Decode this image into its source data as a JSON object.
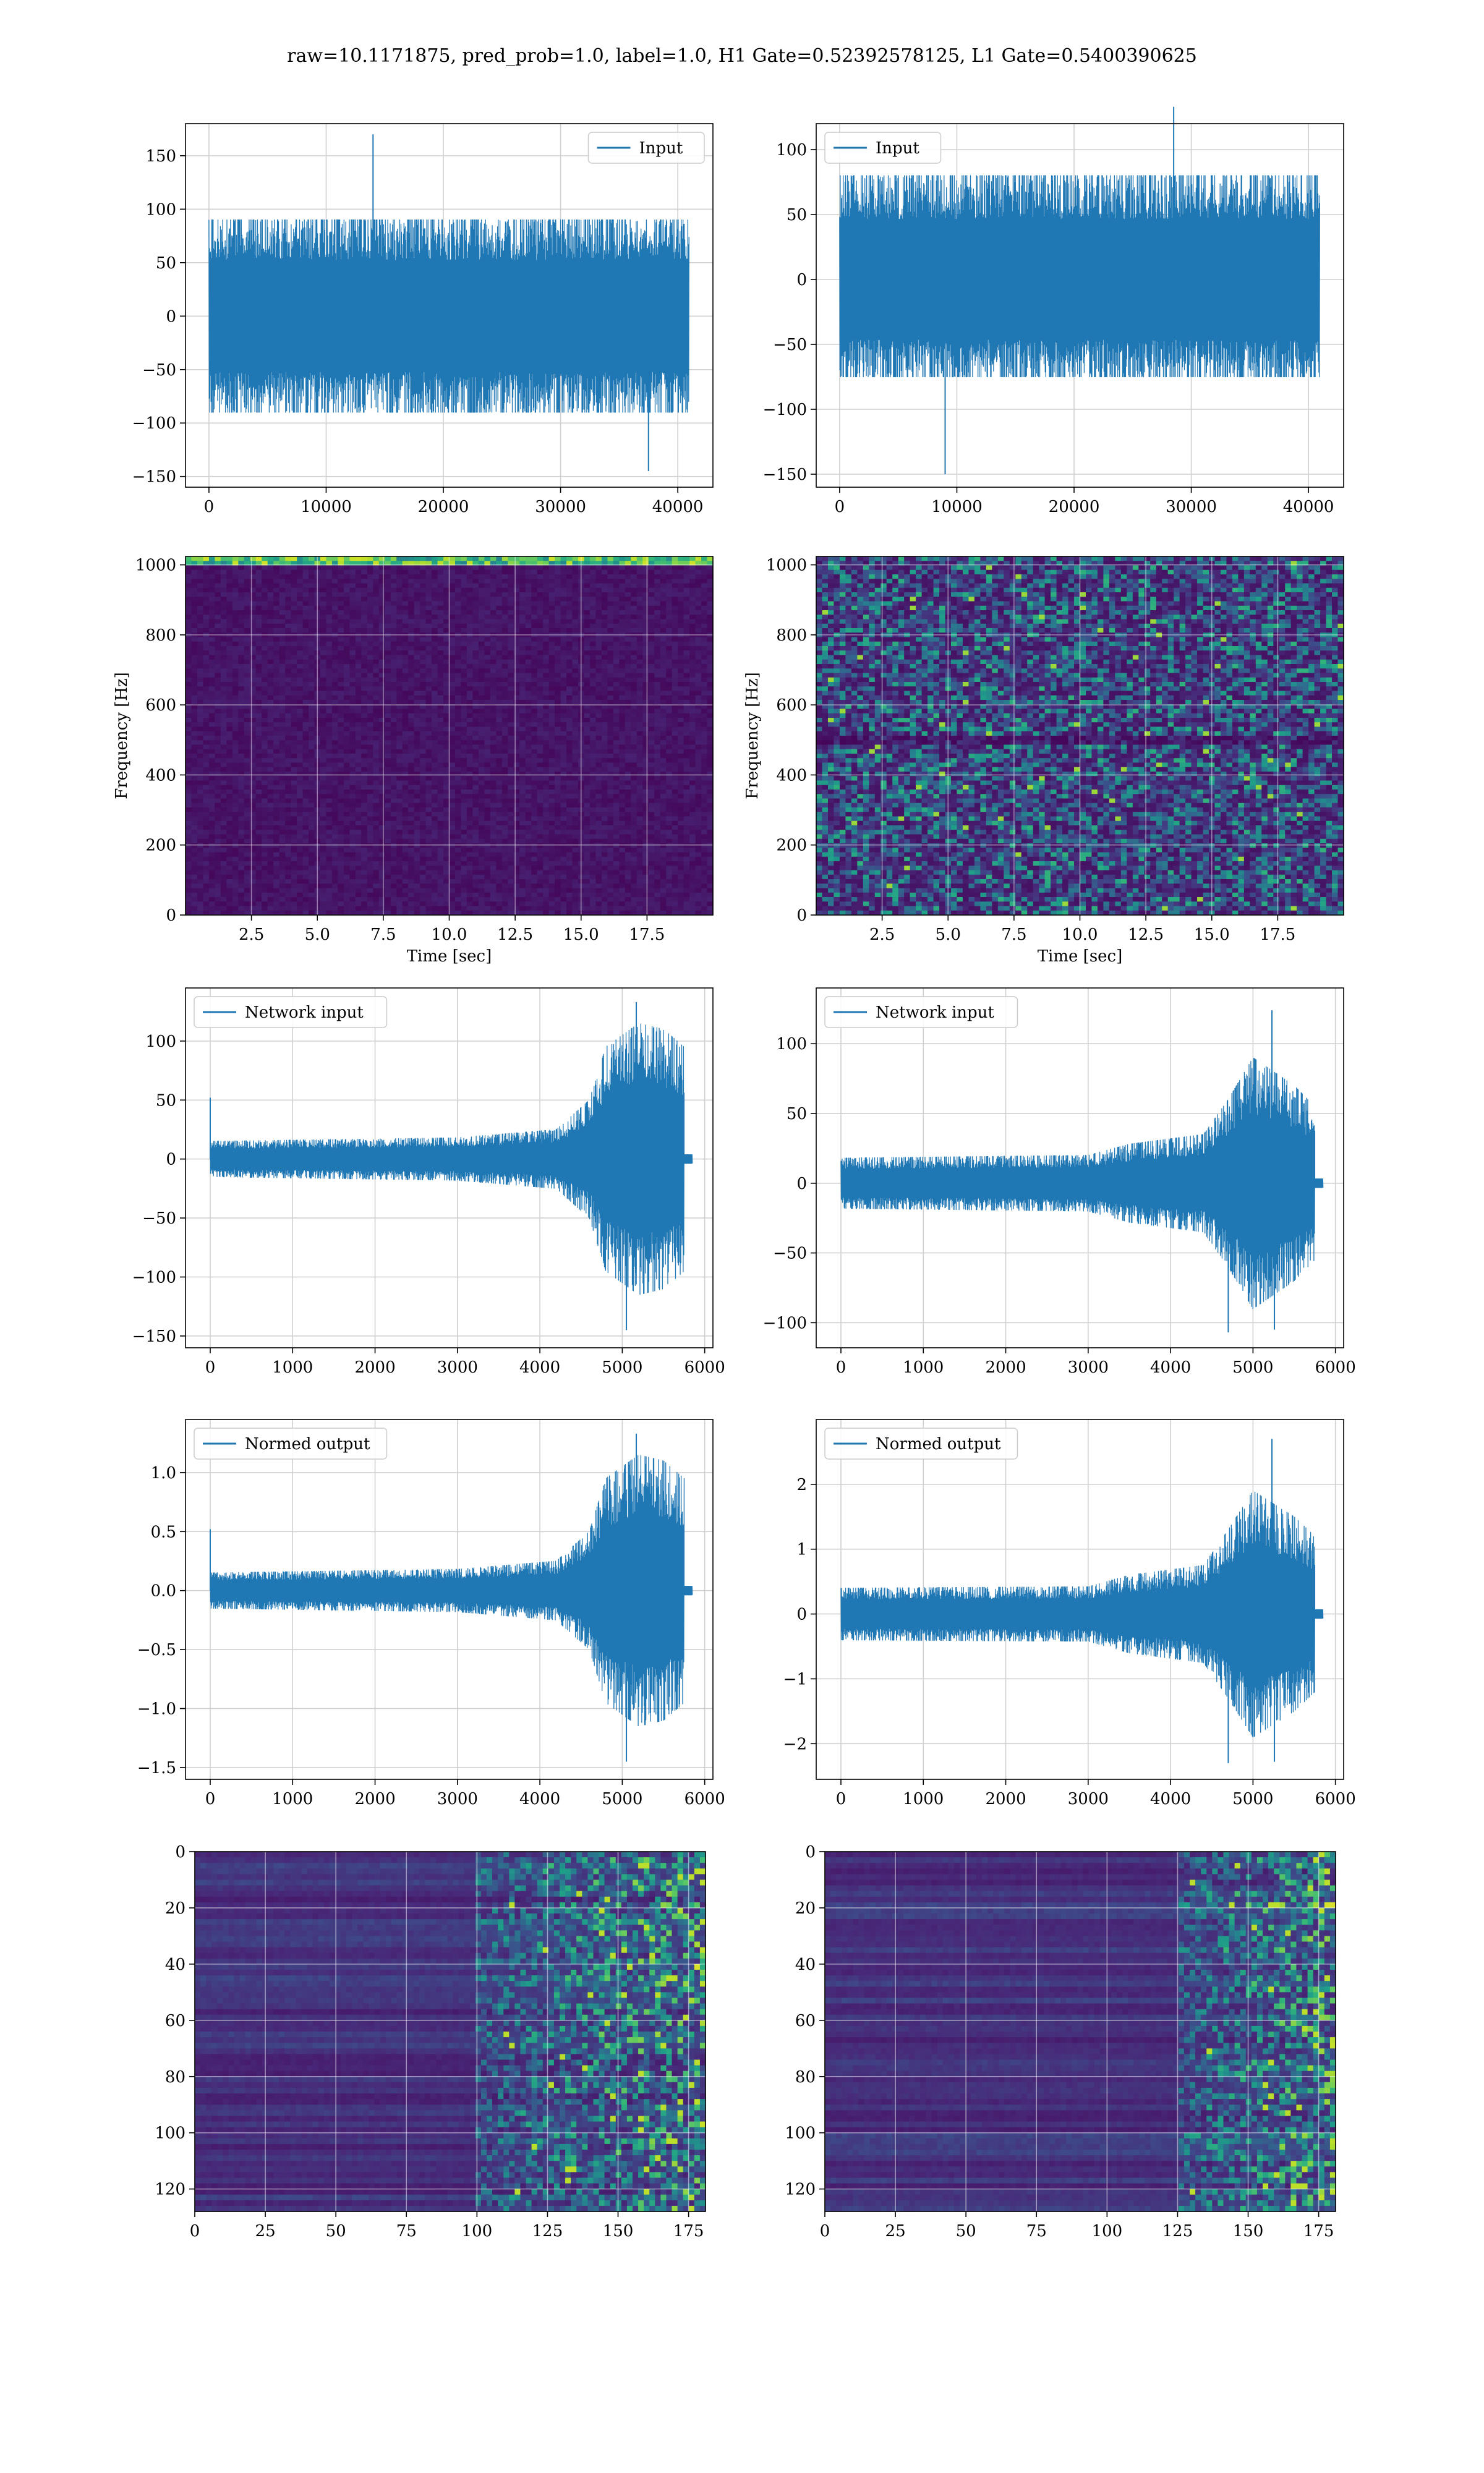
{
  "figure": {
    "suptitle": "raw=10.1171875, pred_prob=1.0, label=1.0, H1 Gate=0.52392578125, L1 Gate=0.5400390625"
  },
  "colors": {
    "line": "#1f77b4",
    "grid": "#d0d0d0",
    "viridis_dark": "#440154",
    "viridis_mid": "#21918c",
    "viridis_bright": "#fde725"
  },
  "chart_data": [
    {
      "id": "h1-input",
      "type": "line",
      "series": [
        {
          "name": "Input"
        }
      ],
      "legend": "top-right",
      "grid": true,
      "xlim": [
        -2000,
        43000
      ],
      "ylim": [
        -160,
        180
      ],
      "xticks": [
        0,
        10000,
        20000,
        30000,
        40000
      ],
      "yticks": [
        -150,
        -100,
        -50,
        0,
        50,
        100,
        150
      ],
      "x_range": [
        0,
        40960
      ],
      "amplitude_envelope": [
        -90,
        90
      ],
      "peak_events": [
        {
          "x": 14000,
          "y": 170
        },
        {
          "x": 37500,
          "y": -145
        }
      ]
    },
    {
      "id": "l1-input",
      "type": "line",
      "series": [
        {
          "name": "Input"
        }
      ],
      "legend": "top-left",
      "grid": true,
      "xlim": [
        -2000,
        43000
      ],
      "ylim": [
        -160,
        120
      ],
      "xticks": [
        0,
        10000,
        20000,
        30000,
        40000
      ],
      "yticks": [
        -150,
        -100,
        -50,
        0,
        50,
        100
      ],
      "x_range": [
        0,
        40960
      ],
      "amplitude_envelope": [
        -75,
        80
      ],
      "peak_events": [
        {
          "x": 9000,
          "y": -150
        },
        {
          "x": 28500,
          "y": 133
        }
      ]
    },
    {
      "id": "h1-spectrogram",
      "type": "heatmap",
      "colormap": "viridis",
      "xlabel": "Time [sec]",
      "ylabel": "Frequency [Hz]",
      "xlim": [
        0,
        20
      ],
      "ylim": [
        0,
        1024
      ],
      "xticks": [
        2.5,
        5.0,
        7.5,
        10.0,
        12.5,
        15.0,
        17.5
      ],
      "yticks": [
        0,
        200,
        400,
        600,
        800,
        1000
      ],
      "bright_band_hz": [
        1004,
        1024
      ]
    },
    {
      "id": "l1-spectrogram",
      "type": "heatmap",
      "colormap": "viridis",
      "xlabel": "Time [sec]",
      "ylabel": "Frequency [Hz]",
      "xlim": [
        0,
        20
      ],
      "ylim": [
        0,
        1024
      ],
      "xticks": [
        2.5,
        5.0,
        7.5,
        10.0,
        12.5,
        15.0,
        17.5
      ],
      "yticks": [
        0,
        200,
        400,
        600,
        800,
        1000
      ],
      "dark_line_hz": 500
    },
    {
      "id": "h1-network-input",
      "type": "line",
      "series": [
        {
          "name": "Network input"
        }
      ],
      "legend": "top-left",
      "grid": true,
      "xlim": [
        -300,
        6100
      ],
      "ylim": [
        -160,
        145
      ],
      "xticks": [
        0,
        1000,
        2000,
        3000,
        4000,
        5000,
        6000
      ],
      "yticks": [
        -150,
        -100,
        -50,
        0,
        50,
        100
      ],
      "x_range": [
        0,
        5750
      ],
      "ringdown_end": 5850,
      "envelope": [
        [
          0,
          15
        ],
        [
          3000,
          18
        ],
        [
          4200,
          25
        ],
        [
          4600,
          50
        ],
        [
          4800,
          95
        ],
        [
          5200,
          115
        ],
        [
          5500,
          110
        ],
        [
          5750,
          95
        ]
      ],
      "peak_events": [
        {
          "x": 0,
          "y": 52
        },
        {
          "x": 5170,
          "y": 133
        },
        {
          "x": 5050,
          "y": -145
        }
      ]
    },
    {
      "id": "l1-network-input",
      "type": "line",
      "series": [
        {
          "name": "Network input"
        }
      ],
      "legend": "top-left",
      "grid": true,
      "xlim": [
        -300,
        6100
      ],
      "ylim": [
        -118,
        140
      ],
      "xticks": [
        0,
        1000,
        2000,
        3000,
        4000,
        5000,
        6000
      ],
      "yticks": [
        -100,
        -50,
        0,
        50,
        100
      ],
      "x_range": [
        0,
        5750
      ],
      "ringdown_end": 5850,
      "envelope": [
        [
          0,
          18
        ],
        [
          3000,
          20
        ],
        [
          3500,
          28
        ],
        [
          4400,
          35
        ],
        [
          4700,
          60
        ],
        [
          5000,
          90
        ],
        [
          5500,
          70
        ],
        [
          5750,
          55
        ]
      ],
      "peak_events": [
        {
          "x": 5230,
          "y": 124
        },
        {
          "x": 4700,
          "y": -107
        },
        {
          "x": 5260,
          "y": -105
        }
      ]
    },
    {
      "id": "h1-normed-output",
      "type": "line",
      "series": [
        {
          "name": "Normed output"
        }
      ],
      "legend": "top-left",
      "grid": true,
      "xlim": [
        -300,
        6100
      ],
      "ylim": [
        -1.6,
        1.45
      ],
      "xticks": [
        0,
        1000,
        2000,
        3000,
        4000,
        5000,
        6000
      ],
      "yticks": [
        -1.5,
        -1.0,
        -0.5,
        0.0,
        0.5,
        1.0
      ],
      "x_range": [
        0,
        5750
      ],
      "ringdown_end": 5850,
      "envelope": [
        [
          0,
          0.15
        ],
        [
          3000,
          0.18
        ],
        [
          4200,
          0.25
        ],
        [
          4600,
          0.5
        ],
        [
          4800,
          0.95
        ],
        [
          5200,
          1.15
        ],
        [
          5500,
          1.1
        ],
        [
          5750,
          0.95
        ]
      ],
      "peak_events": [
        {
          "x": 0,
          "y": 0.52
        },
        {
          "x": 5170,
          "y": 1.33
        },
        {
          "x": 5050,
          "y": -1.45
        }
      ]
    },
    {
      "id": "l1-normed-output",
      "type": "line",
      "series": [
        {
          "name": "Normed output"
        }
      ],
      "legend": "top-left",
      "grid": true,
      "xlim": [
        -300,
        6100
      ],
      "ylim": [
        -2.55,
        3.0
      ],
      "xticks": [
        0,
        1000,
        2000,
        3000,
        4000,
        5000,
        6000
      ],
      "yticks": [
        -2,
        -1,
        0,
        1,
        2
      ],
      "x_range": [
        0,
        5750
      ],
      "ringdown_end": 5850,
      "envelope": [
        [
          0,
          0.4
        ],
        [
          3000,
          0.42
        ],
        [
          3500,
          0.6
        ],
        [
          4400,
          0.75
        ],
        [
          4700,
          1.3
        ],
        [
          5000,
          1.9
        ],
        [
          5500,
          1.5
        ],
        [
          5750,
          1.2
        ]
      ],
      "peak_events": [
        {
          "x": 5230,
          "y": 2.7
        },
        {
          "x": 4700,
          "y": -2.3
        },
        {
          "x": 5260,
          "y": -2.28
        }
      ]
    },
    {
      "id": "h1-gate-features",
      "type": "heatmap",
      "colormap": "viridis",
      "xlim": [
        0,
        181
      ],
      "ylim": [
        128,
        0
      ],
      "xticks": [
        0,
        25,
        50,
        75,
        100,
        125,
        150,
        175
      ],
      "yticks": [
        0,
        20,
        40,
        60,
        80,
        100,
        120
      ],
      "activity_onset_column": 100
    },
    {
      "id": "l1-gate-features",
      "type": "heatmap",
      "colormap": "viridis",
      "xlim": [
        0,
        181
      ],
      "ylim": [
        128,
        0
      ],
      "xticks": [
        0,
        25,
        50,
        75,
        100,
        125,
        150,
        175
      ],
      "yticks": [
        0,
        20,
        40,
        60,
        80,
        100,
        120
      ],
      "activity_onset_column": 125
    }
  ]
}
